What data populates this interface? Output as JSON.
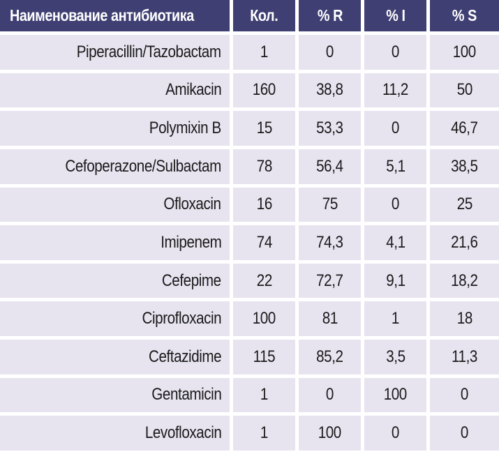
{
  "table": {
    "headers": [
      "Наименование антибиотика",
      "Кол.",
      "% R",
      "% I",
      "% S"
    ],
    "rows": [
      [
        "Piperacillin/Tazobactam",
        "1",
        "0",
        "0",
        "100"
      ],
      [
        "Amikacin",
        "160",
        "38,8",
        "11,2",
        "50"
      ],
      [
        "Polymixin B",
        "15",
        "53,3",
        "0",
        "46,7"
      ],
      [
        "Cefoperazone/Sulbactam",
        "78",
        "56,4",
        "5,1",
        "38,5"
      ],
      [
        "Ofloxacin",
        "16",
        "75",
        "0",
        "25"
      ],
      [
        "Imipenem",
        "74",
        "74,3",
        "4,1",
        "21,6"
      ],
      [
        "Cefepime",
        "22",
        "72,7",
        "9,1",
        "18,2"
      ],
      [
        "Ciprofloxacin",
        "100",
        "81",
        "1",
        "18"
      ],
      [
        "Ceftazidime",
        "115",
        "85,2",
        "3,5",
        "11,3"
      ],
      [
        "Gentamicin",
        "1",
        "0",
        "100",
        "0"
      ],
      [
        "Levofloxacin",
        "1",
        "100",
        "0",
        "0"
      ]
    ]
  },
  "colors": {
    "header_bg": "#3f3f73",
    "header_text": "#ffffff",
    "row_bg": "#e7e4f0"
  }
}
